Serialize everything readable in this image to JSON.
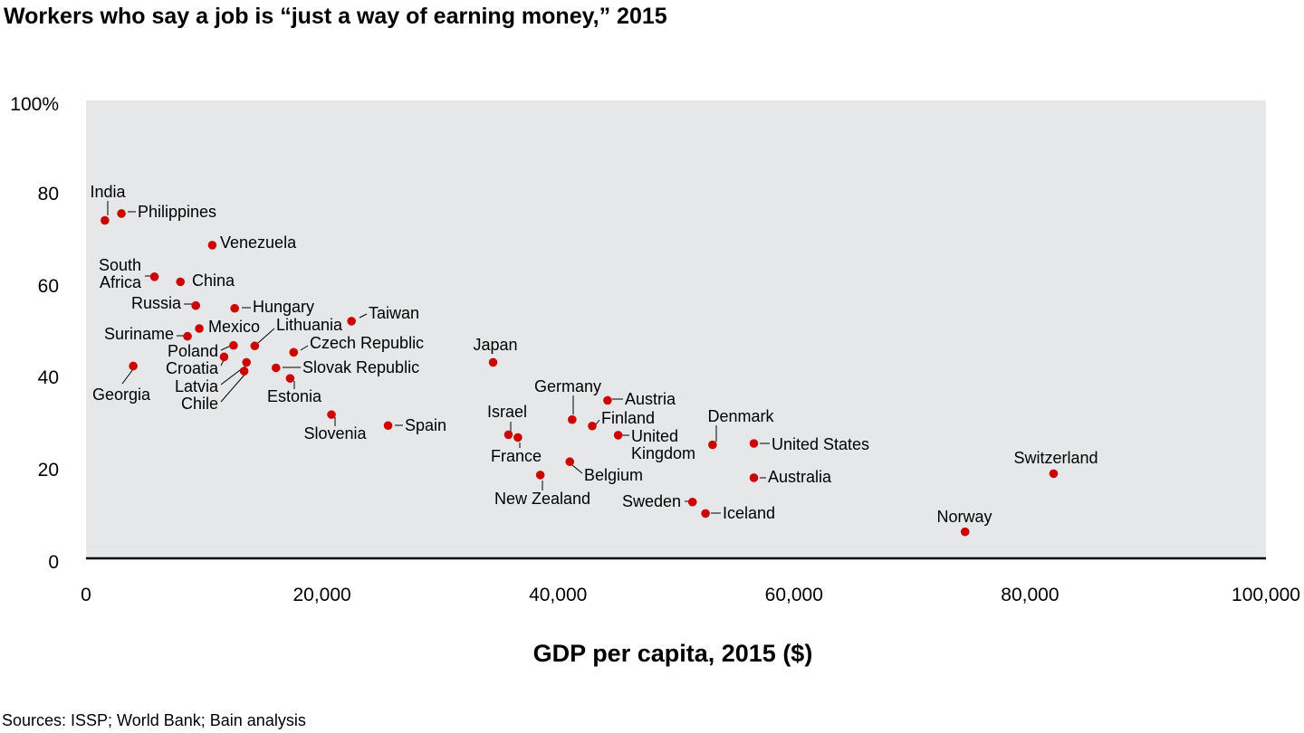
{
  "title": "Workers who say a job is “just a way of earning money,” 2015",
  "source": "Sources: ISSP; World Bank; Bain analysis",
  "chart_data": {
    "type": "scatter",
    "title": "Workers who say a job is “just a way of earning money,” 2015",
    "xlabel": "GDP per capita, 2015 ($)",
    "ylabel": "",
    "xlim": [
      0,
      100000
    ],
    "ylim": [
      0,
      100
    ],
    "x_ticks": [
      "0",
      "20,000",
      "40,000",
      "60,000",
      "80,000",
      "100,000"
    ],
    "y_ticks": [
      "0",
      "20",
      "40",
      "60",
      "80",
      "100%"
    ],
    "grid": false,
    "marker_color": "#cc0000",
    "plot_background": "#e6e7e8",
    "points": [
      {
        "label": "India",
        "x": 1600,
        "y": 73.8
      },
      {
        "label": "Philippines",
        "x": 3000,
        "y": 75.3
      },
      {
        "label": "Venezuela",
        "x": 10700,
        "y": 68.4
      },
      {
        "label": "South Africa",
        "x": 5800,
        "y": 61.5
      },
      {
        "label": "China",
        "x": 8000,
        "y": 60.4
      },
      {
        "label": "Russia",
        "x": 9300,
        "y": 55.2
      },
      {
        "label": "Hungary",
        "x": 12600,
        "y": 54.6
      },
      {
        "label": "Taiwan",
        "x": 22500,
        "y": 51.8
      },
      {
        "label": "Lithuania",
        "x": 14300,
        "y": 46.4
      },
      {
        "label": "Mexico",
        "x": 9600,
        "y": 50.2
      },
      {
        "label": "Suriname",
        "x": 8600,
        "y": 48.5
      },
      {
        "label": "Poland",
        "x": 12500,
        "y": 46.5
      },
      {
        "label": "Czech Republic",
        "x": 17600,
        "y": 45.0
      },
      {
        "label": "Croatia",
        "x": 11700,
        "y": 44.0
      },
      {
        "label": "Latvia",
        "x": 13600,
        "y": 42.8
      },
      {
        "label": "Chile",
        "x": 13400,
        "y": 40.9
      },
      {
        "label": "Slovak Republic",
        "x": 16100,
        "y": 41.6
      },
      {
        "label": "Estonia",
        "x": 17300,
        "y": 39.3
      },
      {
        "label": "Georgia",
        "x": 4000,
        "y": 42.0
      },
      {
        "label": "Japan",
        "x": 34500,
        "y": 42.8
      },
      {
        "label": "Slovenia",
        "x": 20800,
        "y": 31.4
      },
      {
        "label": "Spain",
        "x": 25600,
        "y": 29.0
      },
      {
        "label": "Germany",
        "x": 41200,
        "y": 30.3
      },
      {
        "label": "Austria",
        "x": 44200,
        "y": 34.5
      },
      {
        "label": "Finland",
        "x": 42900,
        "y": 28.9
      },
      {
        "label": "Israel",
        "x": 35800,
        "y": 27.0
      },
      {
        "label": "France",
        "x": 36600,
        "y": 26.4
      },
      {
        "label": "United Kingdom",
        "x": 45100,
        "y": 26.9
      },
      {
        "label": "Denmark",
        "x": 53100,
        "y": 24.8
      },
      {
        "label": "United States",
        "x": 56600,
        "y": 25.1
      },
      {
        "label": "Belgium",
        "x": 41000,
        "y": 21.1
      },
      {
        "label": "New Zealand",
        "x": 38500,
        "y": 18.2
      },
      {
        "label": "Australia",
        "x": 56600,
        "y": 17.6
      },
      {
        "label": "Switzerland",
        "x": 82000,
        "y": 18.5
      },
      {
        "label": "Sweden",
        "x": 51400,
        "y": 12.3
      },
      {
        "label": "Iceland",
        "x": 52500,
        "y": 9.8
      },
      {
        "label": "Norway",
        "x": 74500,
        "y": 5.8
      }
    ]
  }
}
